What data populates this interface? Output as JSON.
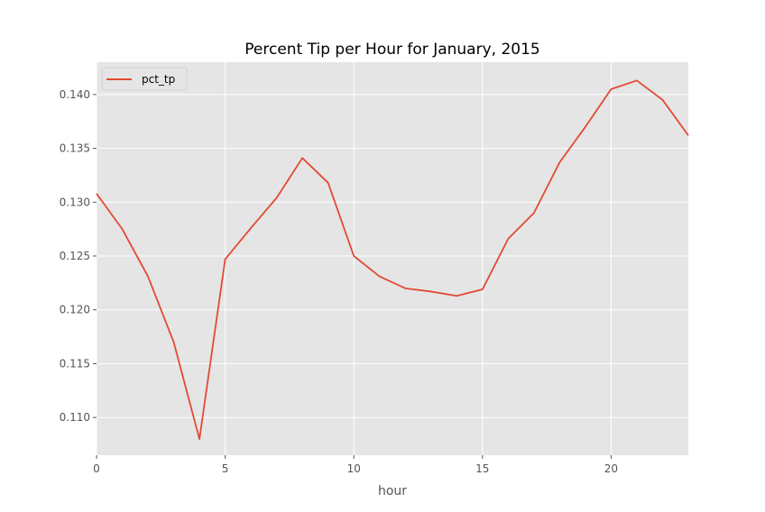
{
  "chart_data": {
    "type": "line",
    "title": "Percent Tip per Hour for January, 2015",
    "xlabel": "hour",
    "ylabel": "",
    "xlim": [
      0,
      23
    ],
    "ylim": [
      0.1065,
      0.143
    ],
    "xticks": [
      0,
      5,
      10,
      15,
      20
    ],
    "yticks": [
      0.11,
      0.115,
      0.12,
      0.125,
      0.13,
      0.135,
      0.14
    ],
    "ytick_labels": [
      "0.110",
      "0.115",
      "0.120",
      "0.125",
      "0.130",
      "0.135",
      "0.140"
    ],
    "grid": true,
    "legend_position": "top-left",
    "x": [
      0,
      1,
      2,
      3,
      4,
      5,
      6,
      7,
      8,
      9,
      10,
      11,
      12,
      13,
      14,
      15,
      16,
      17,
      18,
      19,
      20,
      21,
      22,
      23
    ],
    "series": [
      {
        "name": "pct_tp",
        "color": "#E24A33",
        "values": [
          0.1308,
          0.1275,
          0.1231,
          0.117,
          0.108,
          0.1247,
          0.1276,
          0.1304,
          0.1341,
          0.1318,
          0.125,
          0.1231,
          0.122,
          0.1217,
          0.1213,
          0.1219,
          0.1266,
          0.129,
          0.1337,
          0.137,
          0.1405,
          0.1413,
          0.1395,
          0.1362
        ]
      }
    ],
    "colors": {
      "background": "#E5E5E5",
      "grid": "#FFFFFF",
      "tick": "#555555"
    }
  }
}
